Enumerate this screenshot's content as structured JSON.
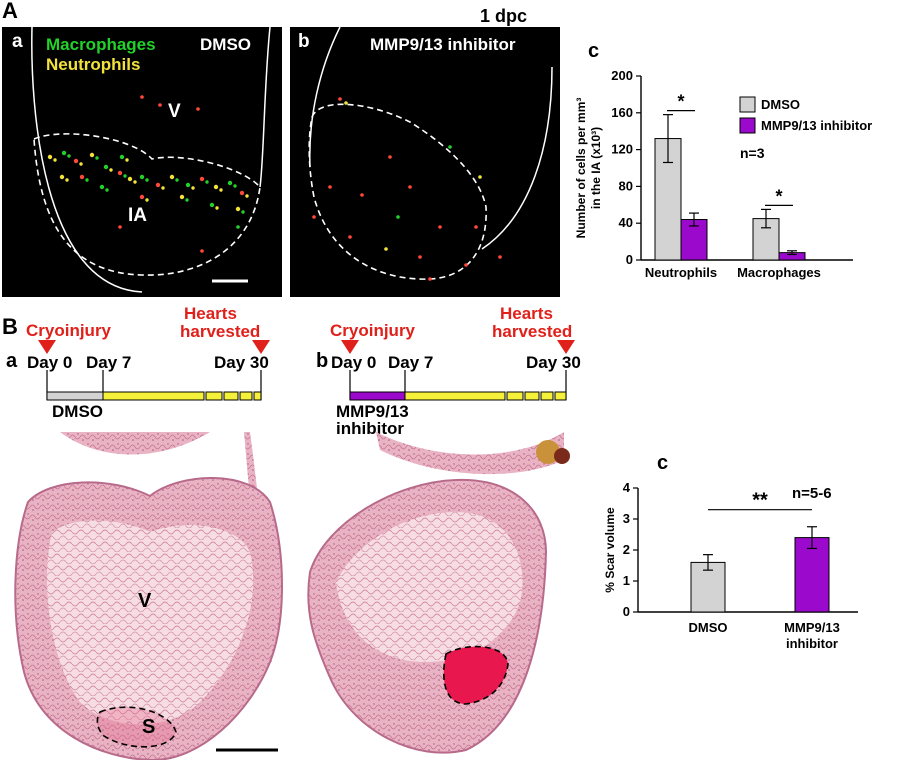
{
  "panel_A": {
    "letter": "A",
    "time_label": "1 dpc",
    "a": {
      "letter": "a",
      "legend_macrophages": "Macrophages",
      "legend_neutrophils": "Neutrophils",
      "condition": "DMSO",
      "label_v": "V",
      "label_ia": "IA",
      "macrophage_color": "#22d22a",
      "neutrophil_color": "#f2e23a"
    },
    "b": {
      "letter": "b",
      "condition": "MMP9/13 inhibitor"
    },
    "c": {
      "letter": "c",
      "stat_n": "n=3",
      "significance": [
        "*",
        "*"
      ]
    }
  },
  "panel_B": {
    "letter": "B",
    "a": {
      "letter": "a",
      "cryoinjury": "Cryoinjury",
      "hearts": "Hearts",
      "harvested": "harvested",
      "day0": "Day 0",
      "day7": "Day 7",
      "day30": "Day 30",
      "treatment": "DMSO",
      "label_v": "V",
      "label_s": "S"
    },
    "b": {
      "letter": "b",
      "cryoinjury": "Cryoinjury",
      "hearts": "Hearts",
      "harvested": "harvested",
      "day0": "Day 0",
      "day7": "Day 7",
      "day30": "Day 30",
      "treatment_line1": "MMP9/13",
      "treatment_line2": "inhibitor"
    },
    "c": {
      "letter": "c",
      "stat_n": "n=5-6",
      "significance": "**"
    }
  },
  "colors": {
    "dmso": "#d3d3d3",
    "inhibitor": "#9b09cc",
    "annotation_red": "#e0201a",
    "timeline_yellow": "#f5f03a",
    "he_stain": "#e9a9bb"
  },
  "chart_data": [
    {
      "type": "bar",
      "categories": [
        "Neutrophils",
        "Macrophages"
      ],
      "series": [
        {
          "name": "DMSO",
          "values": [
            132,
            45
          ],
          "errors": [
            26,
            10
          ]
        },
        {
          "name": "MMP9/13 inhibitor",
          "values": [
            44,
            8
          ],
          "errors": [
            7,
            2
          ]
        }
      ],
      "ylabel_line1": "Number of cells per mm³",
      "ylabel_line2": "in the IA (x10³)",
      "ylim": [
        0,
        200
      ],
      "yticks": [
        0,
        40,
        80,
        120,
        160,
        200
      ],
      "legend": "top-right"
    },
    {
      "type": "bar",
      "categories": [
        "DMSO",
        "MMP9/13 inhibitor"
      ],
      "category_lines": [
        [
          "DMSO"
        ],
        [
          "MMP9/13",
          "inhibitor"
        ]
      ],
      "values": [
        1.6,
        2.4
      ],
      "errors": [
        0.25,
        0.35
      ],
      "ylabel": "% Scar volume",
      "ylim": [
        0,
        4
      ],
      "yticks": [
        0,
        1,
        2,
        3,
        4
      ]
    }
  ]
}
